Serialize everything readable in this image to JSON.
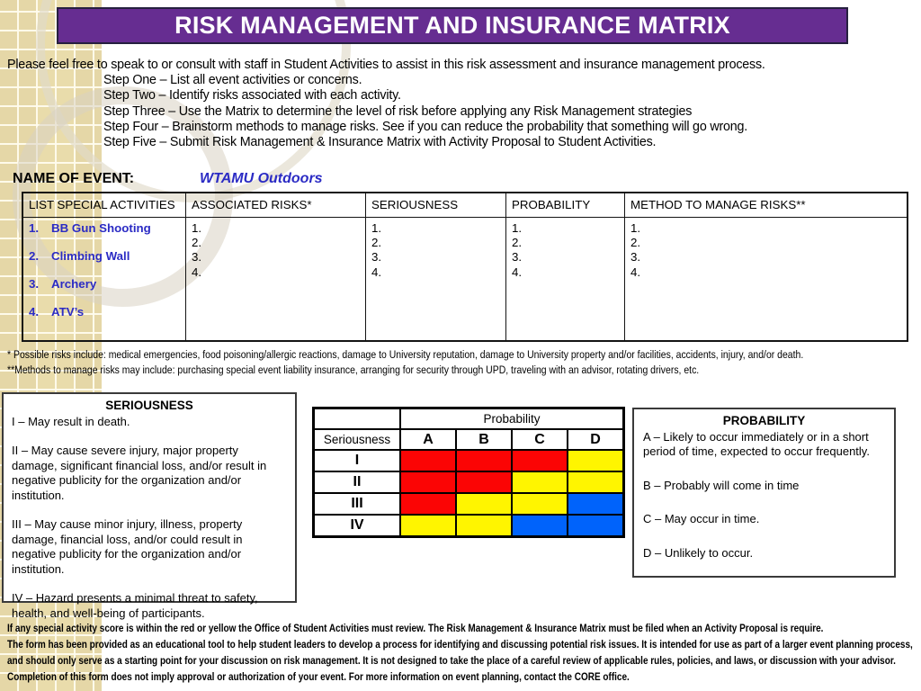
{
  "slide": {
    "title": "RISK MANAGEMENT AND INSURANCE MATRIX",
    "intro_lead": "Please feel free to speak to or consult with staff in Student Activities to assist in this risk assessment and insurance management process.",
    "steps": [
      "Step One – List all event activities or concerns.",
      "Step Two – Identify risks associated with each activity.",
      "Step Three – Use the Matrix to determine the level of risk before applying any Risk Management strategies",
      "Step Four – Brainstorm methods to manage risks.  See if you can reduce the probability that something will go wrong.",
      "Step Five – Submit Risk Management & Insurance Matrix with Activity Proposal to Student Activities."
    ],
    "event_label": "NAME OF EVENT:",
    "event_name": "WTAMU Outdoors"
  },
  "activities_table": {
    "headers": [
      "LIST SPECIAL ACTIVITIES",
      "ASSOCIATED RISKS*",
      "SERIOUSNESS",
      "PROBABILITY",
      "METHOD TO MANAGE RISKS**"
    ],
    "activities": [
      {
        "num": "1.",
        "name": "BB Gun Shooting"
      },
      {
        "num": "2.",
        "name": "Climbing Wall"
      },
      {
        "num": "3.",
        "name": "Archery"
      },
      {
        "num": "4.",
        "name": "ATV’s"
      }
    ],
    "row_numbers": [
      "1.",
      "2.",
      "3.",
      "4."
    ]
  },
  "footnotes": {
    "line1": "* Possible risks include:  medical emergencies, food poisoning/allergic reactions, damage to University reputation, damage to University property and/or facilities, accidents, injury, and/or death.",
    "line2": "**Methods to manage risks may include:  purchasing special event liability insurance, arranging for security through UPD, traveling with an advisor, rotating drivers, etc."
  },
  "seriousness_box": {
    "title": "SERIOUSNESS",
    "items": [
      "I – May result in death.",
      "II – May cause severe injury, major property damage, significant financial loss, and/or result in negative publicity for the organization and/or institution.",
      "III – May cause minor injury, illness, property damage, financial loss, and/or could result in negative publicity for the organization and/or institution.",
      "IV – Hazard presents a minimal threat to safety, health, and well-being of participants."
    ]
  },
  "probability_box": {
    "title": "PROBABILITY",
    "items": [
      "A – Likely to occur immediately or in a short period of time, expected to occur frequently.",
      "B – Probably will come in time",
      "C – May occur in time.",
      "D – Unlikely to occur."
    ]
  },
  "risk_matrix": {
    "probability_label": "Probability",
    "seriousness_label": "Seriousness",
    "columns": [
      "A",
      "B",
      "C",
      "D"
    ],
    "rows": [
      {
        "label": "I",
        "cells": [
          "red",
          "red",
          "red",
          "yellow"
        ]
      },
      {
        "label": "II",
        "cells": [
          "red",
          "red",
          "yellow",
          "yellow"
        ]
      },
      {
        "label": "III",
        "cells": [
          "red",
          "yellow",
          "yellow",
          "blue"
        ]
      },
      {
        "label": "IV",
        "cells": [
          "yellow",
          "yellow",
          "blue",
          "blue"
        ]
      }
    ],
    "cell_colors": {
      "red": "#fb0505",
      "yellow": "#fff500",
      "blue": "#0063fb"
    }
  },
  "bottom_notes": {
    "para1": "If any special activity score is within the red or yellow the Office of Student Activities must review.  The Risk Management & Insurance Matrix must be filed when an Activity Proposal is require.",
    "para2": "The form has been provided as an educational tool to help student leaders to develop a process for identifying and discussing potential risk issues.  It is intended for use as part of a larger event planning process, and should only serve as a starting point for your discussion on risk management.  It is not designed to take the place of a careful review of applicable rules, policies, and laws, or discussion with your advisor.  Completion of this form does not imply approval or authorization of your event.  For more information on event planning, contact the CORE office."
  },
  "colors": {
    "banner_purple": "#662d91",
    "accent_blue_text": "#2b2bc4",
    "strip_tan": "#e9dcab",
    "matrix_red": "#fb0505",
    "matrix_yellow": "#fff500",
    "matrix_blue": "#0063fb"
  }
}
